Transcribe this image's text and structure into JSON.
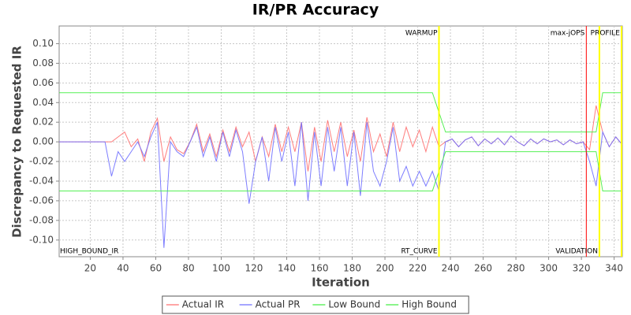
{
  "chart_data": {
    "type": "line",
    "title": "IR/PR Accuracy",
    "xlabel": "Iteration",
    "ylabel": "Discrepancy to Requested IR",
    "x": [
      1,
      5,
      9,
      13,
      17,
      21,
      25,
      29,
      33,
      37,
      41,
      45,
      49,
      53,
      57,
      61,
      65,
      69,
      73,
      77,
      81,
      85,
      89,
      93,
      97,
      101,
      105,
      109,
      113,
      117,
      121,
      125,
      129,
      133,
      137,
      141,
      145,
      149,
      153,
      157,
      161,
      165,
      169,
      173,
      177,
      181,
      185,
      189,
      193,
      197,
      201,
      205,
      209,
      213,
      217,
      221,
      225,
      229,
      233,
      237,
      241,
      245,
      249,
      253,
      257,
      261,
      265,
      269,
      273,
      277,
      281,
      285,
      289,
      293,
      297,
      301,
      305,
      309,
      313,
      317,
      321,
      325,
      329,
      333,
      337,
      341,
      345
    ],
    "series": [
      {
        "name": "Actual IR",
        "color": "#ff6f6f",
        "values": [
          0,
          0,
          0,
          0,
          0,
          0,
          0,
          0,
          0,
          0.005,
          0.01,
          -0.005,
          0.003,
          -0.02,
          0.01,
          0.024,
          -0.02,
          0.005,
          -0.008,
          -0.012,
          0,
          0.018,
          -0.01,
          0.008,
          -0.015,
          0.012,
          -0.01,
          0.015,
          -0.005,
          0.01,
          -0.02,
          0.005,
          -0.015,
          0.018,
          -0.01,
          0.015,
          -0.01,
          0.02,
          -0.03,
          0.015,
          -0.02,
          0.022,
          -0.01,
          0.02,
          -0.015,
          0.012,
          -0.02,
          0.025,
          -0.01,
          0.008,
          -0.015,
          0.02,
          -0.01,
          0.015,
          -0.005,
          0.012,
          -0.01,
          0.015,
          -0.005,
          0,
          0.003,
          -0.005,
          0.002,
          0.005,
          -0.004,
          0.003,
          -0.002,
          0.004,
          -0.003,
          0.006,
          0,
          -0.004,
          0.003,
          -0.002,
          0.003,
          0,
          0.002,
          -0.003,
          0.002,
          -0.002,
          0,
          -0.008,
          0.037,
          0.01,
          -0.005,
          0.005,
          -0.003
        ]
      },
      {
        "name": "Actual PR",
        "color": "#6f6fff",
        "values": [
          0,
          0,
          0,
          0,
          0,
          0,
          0,
          0,
          -0.035,
          -0.01,
          -0.02,
          -0.01,
          0,
          -0.015,
          0.005,
          0.02,
          -0.108,
          0,
          -0.01,
          -0.015,
          0,
          0.015,
          -0.015,
          0.005,
          -0.02,
          0.01,
          -0.015,
          0.012,
          -0.01,
          -0.063,
          -0.02,
          0.005,
          -0.04,
          0.015,
          -0.02,
          0.01,
          -0.045,
          0.02,
          -0.06,
          0.01,
          -0.045,
          0.015,
          -0.03,
          0.015,
          -0.045,
          0.01,
          -0.055,
          0.02,
          -0.03,
          -0.045,
          -0.02,
          0.015,
          -0.04,
          -0.025,
          -0.045,
          -0.03,
          -0.045,
          -0.03,
          -0.05,
          0,
          0.003,
          -0.005,
          0.002,
          0.005,
          -0.004,
          0.003,
          -0.002,
          0.004,
          -0.003,
          0.006,
          0,
          -0.004,
          0.003,
          -0.002,
          0.003,
          0,
          0.002,
          -0.003,
          0.002,
          -0.002,
          0,
          -0.02,
          -0.045,
          0.01,
          -0.005,
          0.005,
          -0.003
        ]
      },
      {
        "name": "Low Bound",
        "color": "#44ee44",
        "values": [
          -0.05,
          -0.05,
          -0.05,
          -0.05,
          -0.05,
          -0.05,
          -0.05,
          -0.05,
          -0.05,
          -0.05,
          -0.05,
          -0.05,
          -0.05,
          -0.05,
          -0.05,
          -0.05,
          -0.05,
          -0.05,
          -0.05,
          -0.05,
          -0.05,
          -0.05,
          -0.05,
          -0.05,
          -0.05,
          -0.05,
          -0.05,
          -0.05,
          -0.05,
          -0.05,
          -0.05,
          -0.05,
          -0.05,
          -0.05,
          -0.05,
          -0.05,
          -0.05,
          -0.05,
          -0.05,
          -0.05,
          -0.05,
          -0.05,
          -0.05,
          -0.05,
          -0.05,
          -0.05,
          -0.05,
          -0.05,
          -0.05,
          -0.05,
          -0.05,
          -0.05,
          -0.05,
          -0.05,
          -0.05,
          -0.05,
          -0.05,
          -0.05,
          -0.03,
          -0.01,
          -0.01,
          -0.01,
          -0.01,
          -0.01,
          -0.01,
          -0.01,
          -0.01,
          -0.01,
          -0.01,
          -0.01,
          -0.01,
          -0.01,
          -0.01,
          -0.01,
          -0.01,
          -0.01,
          -0.01,
          -0.01,
          -0.01,
          -0.01,
          -0.01,
          -0.01,
          -0.01,
          -0.05,
          -0.05,
          -0.05,
          -0.05
        ]
      },
      {
        "name": "High Bound",
        "color": "#44ee44",
        "values": [
          0.05,
          0.05,
          0.05,
          0.05,
          0.05,
          0.05,
          0.05,
          0.05,
          0.05,
          0.05,
          0.05,
          0.05,
          0.05,
          0.05,
          0.05,
          0.05,
          0.05,
          0.05,
          0.05,
          0.05,
          0.05,
          0.05,
          0.05,
          0.05,
          0.05,
          0.05,
          0.05,
          0.05,
          0.05,
          0.05,
          0.05,
          0.05,
          0.05,
          0.05,
          0.05,
          0.05,
          0.05,
          0.05,
          0.05,
          0.05,
          0.05,
          0.05,
          0.05,
          0.05,
          0.05,
          0.05,
          0.05,
          0.05,
          0.05,
          0.05,
          0.05,
          0.05,
          0.05,
          0.05,
          0.05,
          0.05,
          0.05,
          0.05,
          0.03,
          0.01,
          0.01,
          0.01,
          0.01,
          0.01,
          0.01,
          0.01,
          0.01,
          0.01,
          0.01,
          0.01,
          0.01,
          0.01,
          0.01,
          0.01,
          0.01,
          0.01,
          0.01,
          0.01,
          0.01,
          0.01,
          0.01,
          0.01,
          0.01,
          0.05,
          0.05,
          0.05,
          0.05
        ]
      }
    ],
    "xlim": [
      1,
      345
    ],
    "xticks": [
      20,
      40,
      60,
      80,
      100,
      120,
      140,
      160,
      180,
      200,
      220,
      240,
      260,
      280,
      300,
      320,
      340
    ],
    "ylim": [
      -0.117,
      0.118
    ],
    "yticks": [
      {
        "value": -0.1,
        "label": "-0.10"
      },
      -0.08,
      -0.06,
      -0.04,
      -0.02,
      {
        "value": 0,
        "label": "0.00"
      },
      0.02,
      0.04,
      0.06,
      0.08,
      {
        "value": 0.1,
        "label": "0.10"
      }
    ],
    "grid": true,
    "markers": [
      {
        "value": 233,
        "label": "WARMUP",
        "color": "#ffff00",
        "label_position": "top"
      },
      {
        "value": 323,
        "label": "max-jOPS",
        "color": "#ff0000",
        "label_position": "top"
      },
      {
        "value": 344.5,
        "label": "PROFILE",
        "color": "#ffff00",
        "label_position": "top"
      },
      {
        "value": 1,
        "label": "HIGH_BOUND_IR",
        "label_position": "bottom",
        "label_anchor": "start"
      },
      {
        "value": 233,
        "label": "RT_CURVE",
        "label_position": "bottom"
      },
      {
        "value": 331,
        "label": "VALIDATION",
        "color": "#ffff00",
        "label_position": "bottom"
      }
    ],
    "legend": "bottom"
  }
}
